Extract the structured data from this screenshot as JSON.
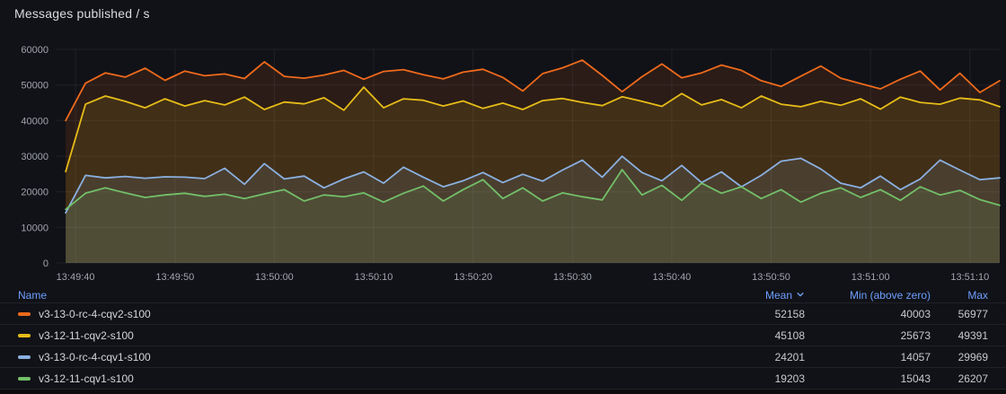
{
  "panel": {
    "title": "Messages published / s"
  },
  "colors": {
    "background": "#111217",
    "link_blue": "#6e9fff",
    "grid": "rgba(204,204,220,0.08)",
    "orange": "#ee6a1c",
    "yellow": "#e6bc18",
    "blue": "#8ab0e0",
    "green": "#73bf69"
  },
  "chart_data": {
    "type": "line",
    "title": "Messages published / s",
    "xlabel": "",
    "ylabel": "",
    "ylim": [
      0,
      60000
    ],
    "y_ticks": [
      0,
      10000,
      20000,
      30000,
      40000,
      50000,
      60000
    ],
    "x_tick_labels": [
      "13:49:40",
      "13:49:50",
      "13:50:00",
      "13:50:10",
      "13:50:20",
      "13:50:30",
      "13:50:40",
      "13:50:50",
      "13:51:00",
      "13:51:10"
    ],
    "x_tick_seconds": [
      2,
      12,
      22,
      32,
      42,
      52,
      62,
      72,
      82,
      92
    ],
    "x_domain_seconds": [
      0,
      95
    ],
    "x_start_seconds": 1,
    "x_step_seconds": 2,
    "grid": true,
    "legend_position": "bottom-table",
    "fill_opacity": 0.12,
    "series": [
      {
        "name": "v3-13-0-rc-4-cqv2-s100",
        "color": "#ee6a1c",
        "mean": 52158,
        "min": 40003,
        "max": 56977,
        "values": [
          40003,
          50500,
          53400,
          52200,
          54700,
          51300,
          53900,
          52600,
          53100,
          51800,
          56500,
          52400,
          51900,
          52800,
          54100,
          51600,
          53800,
          54300,
          52900,
          51700,
          53600,
          54400,
          52100,
          48300,
          53200,
          54800,
          56977,
          52700,
          48100,
          52300,
          55900,
          52000,
          53400,
          55600,
          54100,
          51200,
          49600,
          52500,
          55300,
          51900,
          50400,
          48900,
          51600,
          53900,
          48600,
          53300,
          47900,
          51200
        ]
      },
      {
        "name": "v3-12-11-cqv2-s100",
        "color": "#e6bc18",
        "mean": 45108,
        "min": 25673,
        "max": 49391,
        "values": [
          25673,
          44600,
          46900,
          45400,
          43600,
          46100,
          44100,
          45600,
          44400,
          46600,
          43100,
          45200,
          44700,
          46400,
          42900,
          49391,
          43600,
          46100,
          45700,
          44100,
          45500,
          43400,
          44900,
          43100,
          45600,
          46200,
          45100,
          44200,
          46700,
          45400,
          44000,
          47600,
          44400,
          45900,
          43600,
          46900,
          44600,
          43900,
          45400,
          44300,
          46100,
          43200,
          46600,
          45100,
          44600,
          46300,
          45800,
          43900
        ]
      },
      {
        "name": "v3-13-0-rc-4-cqv1-s100",
        "color": "#8ab0e0",
        "mean": 24201,
        "min": 14057,
        "max": 29969,
        "values": [
          14057,
          24600,
          23900,
          24300,
          23800,
          24200,
          24100,
          23700,
          26600,
          22100,
          27900,
          23600,
          24400,
          21100,
          23600,
          25600,
          22400,
          26900,
          24100,
          21400,
          23100,
          25400,
          22600,
          24900,
          23000,
          26100,
          28900,
          24100,
          29969,
          25400,
          23100,
          27400,
          22600,
          25600,
          21400,
          24600,
          28600,
          29400,
          26400,
          22400,
          21100,
          24400,
          20600,
          23600,
          28900,
          26100,
          23400,
          23900
        ]
      },
      {
        "name": "v3-12-11-cqv1-s100",
        "color": "#73bf69",
        "mean": 19203,
        "min": 15043,
        "max": 26207,
        "values": [
          15043,
          19600,
          21100,
          19700,
          18400,
          19100,
          19600,
          18700,
          19300,
          18100,
          19400,
          20600,
          17400,
          19100,
          18600,
          19700,
          17100,
          19600,
          21600,
          17400,
          20600,
          23400,
          18100,
          21100,
          17400,
          19700,
          18600,
          17700,
          26207,
          19100,
          21800,
          17600,
          22400,
          19600,
          21400,
          18100,
          20600,
          17100,
          19600,
          21100,
          18400,
          20600,
          17600,
          21400,
          19100,
          20400,
          17800,
          16200
        ]
      }
    ]
  },
  "legend": {
    "columns": [
      "Name",
      "Mean",
      "Min (above zero)",
      "Max"
    ],
    "sort": {
      "column": "Mean",
      "direction": "desc"
    },
    "rows": [
      {
        "name": "v3-13-0-rc-4-cqv2-s100",
        "color": "#ee6a1c",
        "mean": "52158",
        "min": "40003",
        "max": "56977"
      },
      {
        "name": "v3-12-11-cqv2-s100",
        "color": "#e6bc18",
        "mean": "45108",
        "min": "25673",
        "max": "49391"
      },
      {
        "name": "v3-13-0-rc-4-cqv1-s100",
        "color": "#8ab0e0",
        "mean": "24201",
        "min": "14057",
        "max": "29969"
      },
      {
        "name": "v3-12-11-cqv1-s100",
        "color": "#73bf69",
        "mean": "19203",
        "min": "15043",
        "max": "26207"
      }
    ]
  }
}
